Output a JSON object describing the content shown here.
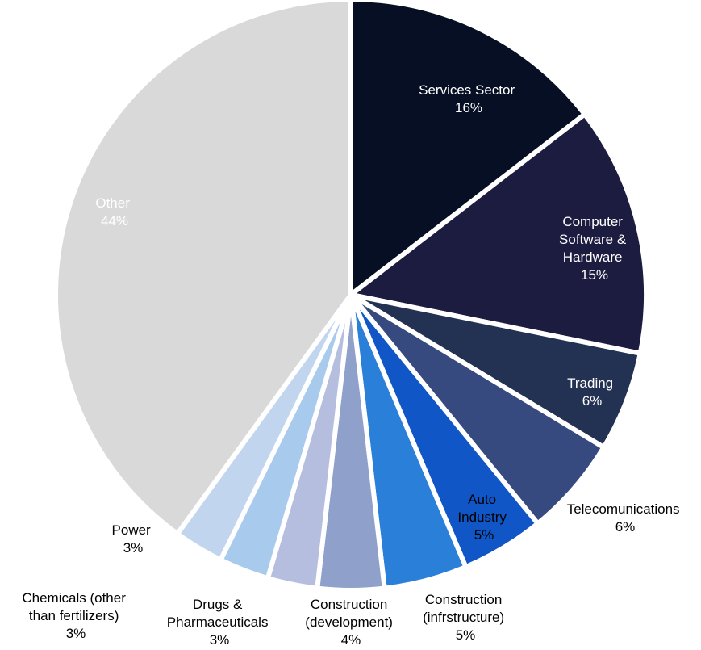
{
  "chart_data": {
    "type": "pie",
    "title": "",
    "start_angle_deg": 0,
    "direction": "clockwise",
    "slices": [
      {
        "label": "Services Sector",
        "value": 16,
        "value_label": "16%",
        "color": "#060f24",
        "label_color": "#ffffff"
      },
      {
        "label": "Computer Software & Hardware",
        "value": 15,
        "value_label": "15%",
        "color": "#1c1c40",
        "label_color": "#ffffff"
      },
      {
        "label": "Trading",
        "value": 6,
        "value_label": "6%",
        "color": "#233152",
        "label_color": "#ffffff"
      },
      {
        "label": "Telecomunications",
        "value": 6,
        "value_label": "6%",
        "color": "#364a80",
        "label_color": "#000000"
      },
      {
        "label": "Auto Industry",
        "value": 5,
        "value_label": "5%",
        "color": "#1156c6",
        "label_color": "#000000"
      },
      {
        "label": "Construction (infrstructure)",
        "value": 5,
        "value_label": "5%",
        "color": "#2a7fd8",
        "label_color": "#000000"
      },
      {
        "label": "Construction (development)",
        "value": 4,
        "value_label": "4%",
        "color": "#8fa0cb",
        "label_color": "#000000"
      },
      {
        "label": "Drugs & Pharmaceuticals",
        "value": 3,
        "value_label": "3%",
        "color": "#b5bedf",
        "label_color": "#000000"
      },
      {
        "label": "Chemicals (other than fertilizers)",
        "value": 3,
        "value_label": "3%",
        "color": "#a8caed",
        "label_color": "#000000"
      },
      {
        "label": "Power",
        "value": 3,
        "value_label": "3%",
        "color": "#c1d6ee",
        "label_color": "#000000"
      },
      {
        "label": "Other",
        "value": 44,
        "value_label": "44%",
        "color": "#d9d9d9",
        "label_color": "#ffffff"
      }
    ]
  }
}
